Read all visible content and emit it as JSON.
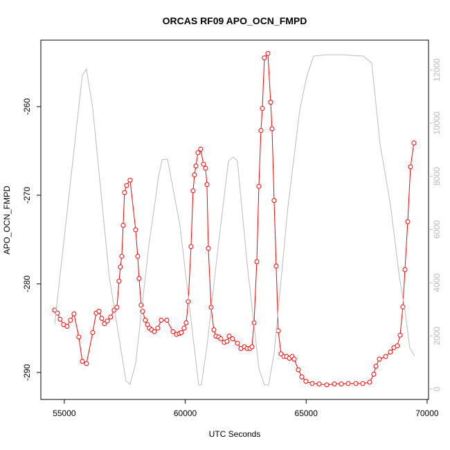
{
  "chart_data": {
    "type": "line",
    "title": "ORCAS RF09 APO_OCN_FMPD",
    "xlabel": "UTC Seconds",
    "ylabel": "APO_OCN_FMPD",
    "xlim": [
      54030,
      70060
    ],
    "xticks": [
      55000,
      60000,
      65000,
      70000
    ],
    "ylim": [
      -293.05,
      -252.5
    ],
    "yticks": [
      -290,
      -280,
      -270,
      -260
    ],
    "y2lim": [
      -390,
      13120
    ],
    "y2ticks": [
      0,
      2000,
      4000,
      6000,
      8000,
      10000,
      12000
    ],
    "y2color": "#bbbbbb",
    "series": [
      {
        "color": "#ff0000",
        "marker": "circle",
        "x": [
          54599,
          54714,
          54828,
          54971,
          55115,
          55258,
          55401,
          55601,
          55744,
          55916,
          56174,
          56317,
          56432,
          56546,
          56661,
          56775,
          56918,
          57061,
          57176,
          57262,
          57319,
          57376,
          57434,
          57491,
          57577,
          57720,
          57949,
          58035,
          58092,
          58178,
          58235,
          58350,
          58436,
          58522,
          58608,
          58722,
          58865,
          59008,
          59237,
          59495,
          59638,
          59753,
          59838,
          59953,
          60039,
          60125,
          60239,
          60325,
          60382,
          60440,
          60525,
          60640,
          60754,
          60840,
          60898,
          60955,
          61070,
          61184,
          61270,
          61385,
          61470,
          61613,
          61728,
          61814,
          61957,
          62158,
          62301,
          62444,
          62558,
          62673,
          62759,
          62845,
          62959,
          63045,
          63131,
          63188,
          63274,
          63417,
          63532,
          63589,
          63675,
          63761,
          63847,
          63961,
          64076,
          64191,
          64305,
          64420,
          64505,
          64677,
          64820,
          64992,
          65250,
          65536,
          65851,
          66166,
          66452,
          66738,
          67053,
          67339,
          67625,
          67797,
          67883,
          68026,
          68284,
          68484,
          68627,
          68770,
          68885,
          68999,
          69085,
          69200,
          69314,
          69457
        ],
        "values": [
          -282.97,
          -283.3,
          -284.0,
          -284.6,
          -284.8,
          -284.1,
          -283.4,
          -286.0,
          -288.75,
          -289.0,
          -285.5,
          -283.3,
          -283.1,
          -283.9,
          -284.5,
          -284.2,
          -283.75,
          -282.97,
          -282.65,
          -279.7,
          -278.1,
          -276.9,
          -273.4,
          -269.7,
          -268.9,
          -268.3,
          -273.9,
          -276.9,
          -279.4,
          -282.4,
          -283.1,
          -284.1,
          -284.6,
          -285.0,
          -285.2,
          -285.4,
          -285.0,
          -284.1,
          -284.1,
          -285.4,
          -285.7,
          -285.6,
          -285.5,
          -285.0,
          -284.4,
          -282.0,
          -275.8,
          -269.5,
          -267.7,
          -266.7,
          -265.2,
          -264.8,
          -266.5,
          -266.95,
          -268.8,
          -276.0,
          -282.65,
          -285.2,
          -285.9,
          -286.0,
          -286.2,
          -286.6,
          -286.5,
          -285.9,
          -286.2,
          -286.7,
          -287.3,
          -287.1,
          -287.3,
          -287.3,
          -287.1,
          -284.4,
          -277.5,
          -269.0,
          -262.7,
          -260.2,
          -254.5,
          -254.0,
          -259.5,
          -262.5,
          -270.6,
          -278.0,
          -285.3,
          -287.9,
          -288.2,
          -288.2,
          -288.4,
          -288.2,
          -288.5,
          -289.7,
          -290.5,
          -291.0,
          -291.25,
          -291.3,
          -291.4,
          -291.3,
          -291.3,
          -291.25,
          -291.25,
          -291.25,
          -291.1,
          -290.2,
          -289.3,
          -288.5,
          -288.2,
          -287.7,
          -287.2,
          -287.0,
          -285.8,
          -282.6,
          -278.4,
          -273.0,
          -266.8,
          -264.1
        ]
      },
      {
        "color": "#bbbbbb",
        "axis": "y2",
        "x": [
          54599,
          55744,
          55916,
          56174,
          56861,
          57548,
          57720,
          57949,
          58493,
          58894,
          59037,
          59266,
          59781,
          60268,
          60554,
          60668,
          60898,
          61299,
          61785,
          61986,
          62158,
          62558,
          63045,
          63274,
          63446,
          63675,
          64248,
          64734,
          65020,
          65307,
          65794,
          66509,
          67368,
          67711,
          68055,
          68484,
          68856,
          69085,
          69286,
          69486
        ],
        "values": [
          2440,
          11790,
          12030,
          10570,
          4210,
          310,
          180,
          960,
          5380,
          7970,
          8620,
          8650,
          6160,
          2390,
          160,
          160,
          1610,
          4860,
          8570,
          8730,
          8570,
          4730,
          780,
          160,
          160,
          1350,
          6860,
          10490,
          11740,
          12520,
          12570,
          12570,
          12520,
          12260,
          9220,
          6940,
          4210,
          2960,
          1530,
          1250
        ]
      }
    ]
  }
}
